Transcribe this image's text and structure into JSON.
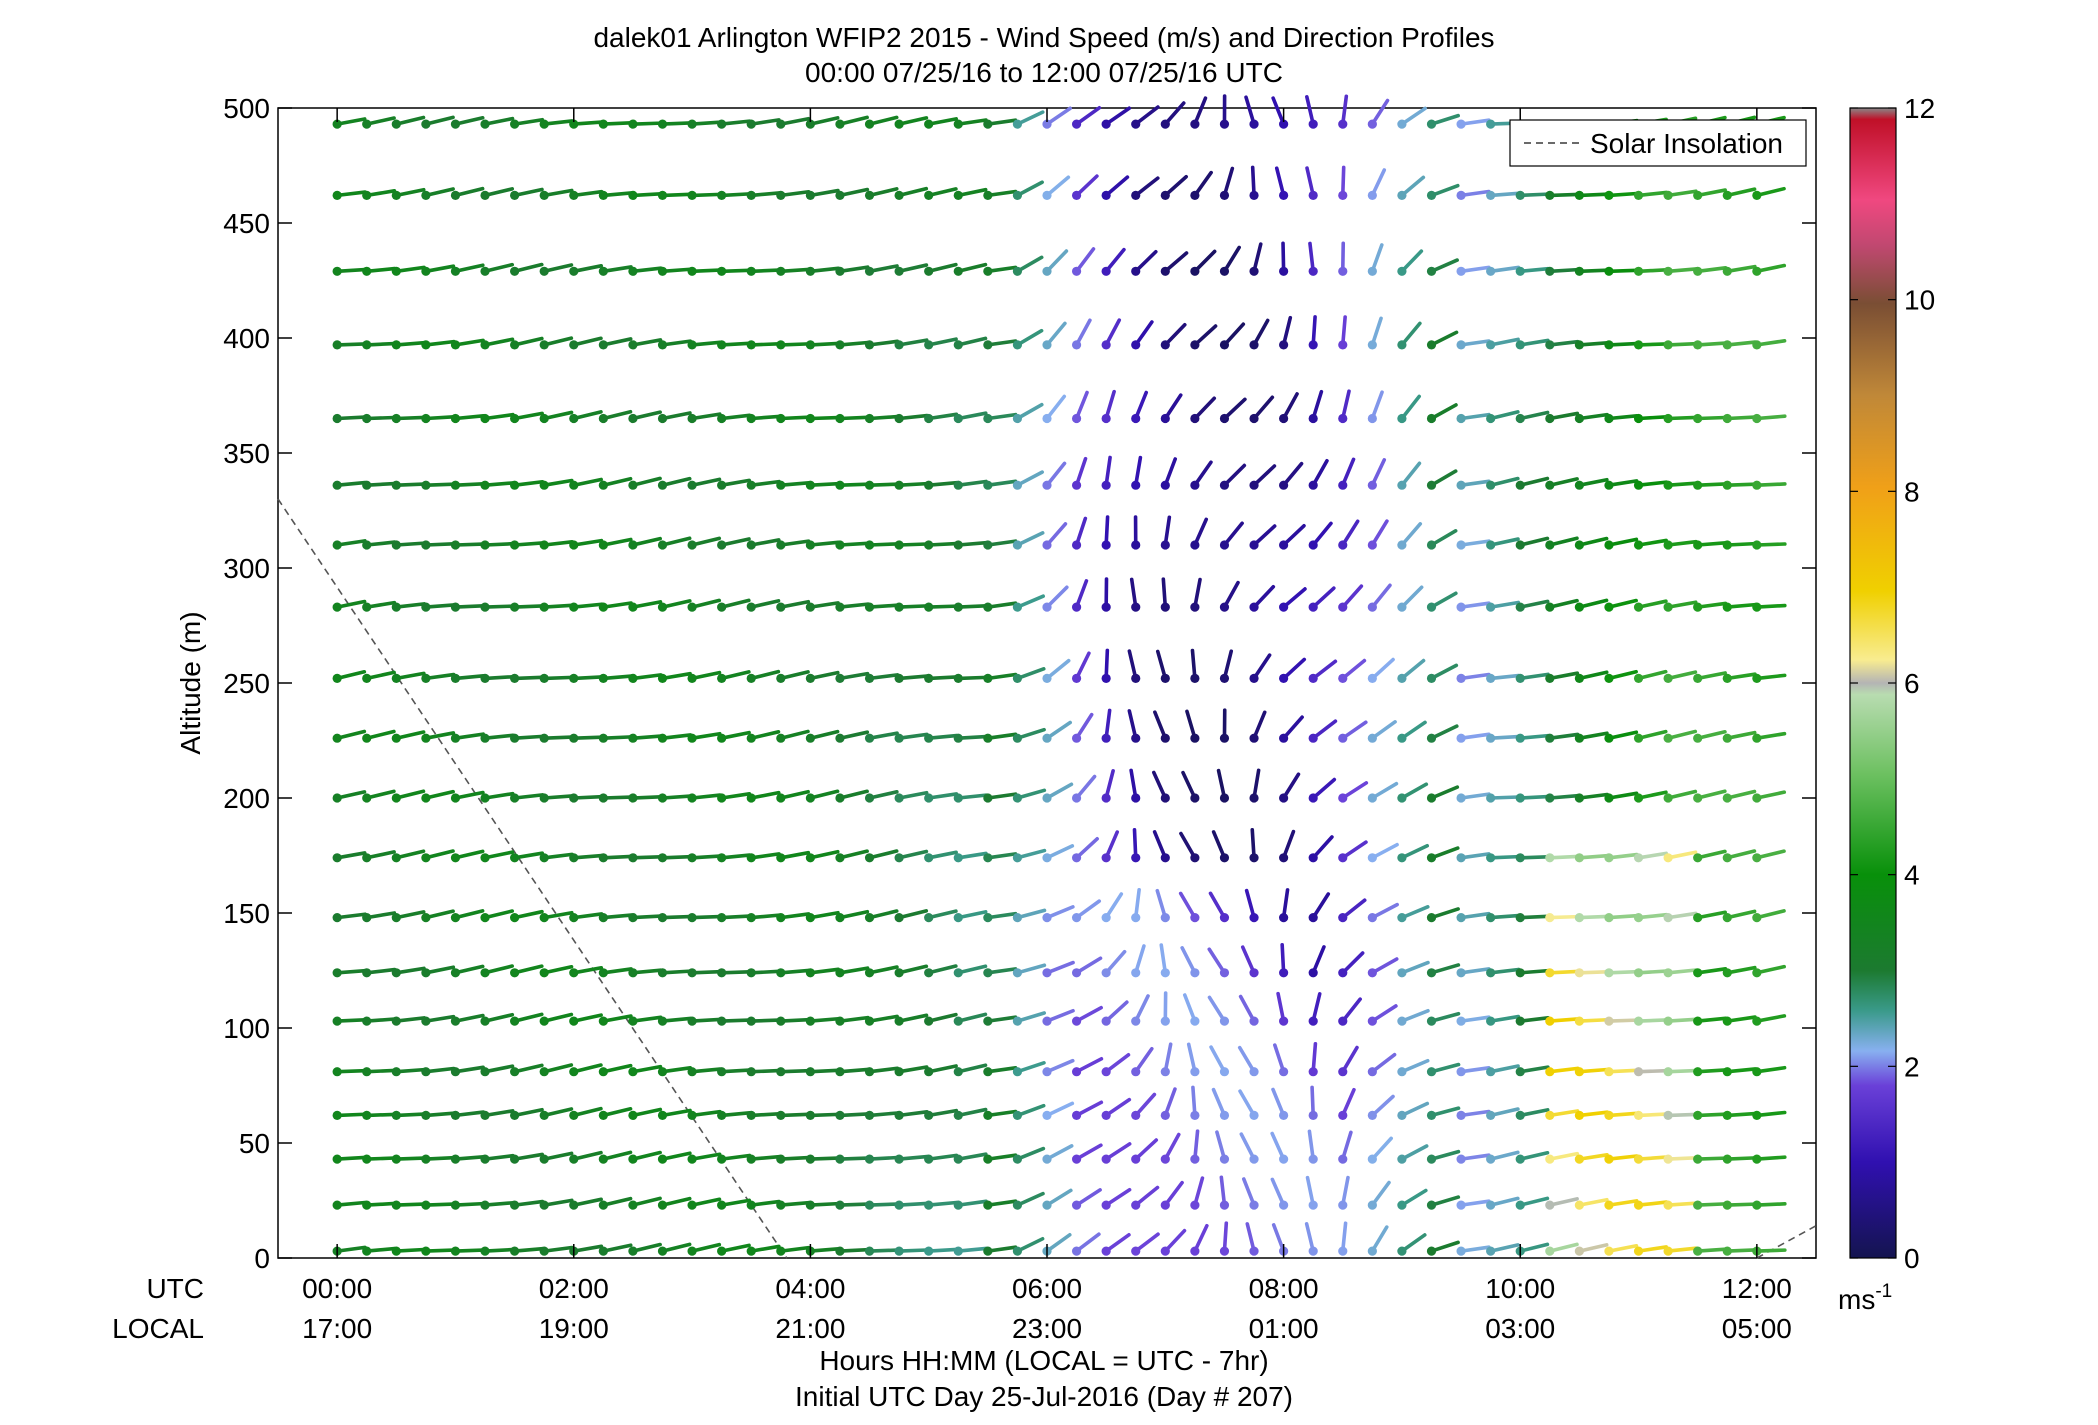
{
  "chart_data": {
    "type": "wind-barb-profile",
    "title": "dalek01 Arlington WFIP2 2015 - Wind Speed (m/s) and Direction Profiles",
    "subtitle": "00:00 07/25/16 to 12:00 07/25/16  UTC",
    "ylabel": "Altitude (m)",
    "xlabel": "Hours HH:MM  (LOCAL = UTC - 7hr)",
    "xlabel2": "Initial UTC Day 25-Jul-2016 (Day # 207)",
    "row_label_utc": "UTC",
    "row_label_local": "LOCAL",
    "ylim": [
      0,
      500
    ],
    "yticks": [
      "0",
      "50",
      "100",
      "150",
      "200",
      "250",
      "300",
      "350",
      "400",
      "450",
      "500"
    ],
    "xlim_hours": [
      -0.5,
      12.5
    ],
    "xticks_utc": [
      "00:00",
      "02:00",
      "04:00",
      "06:00",
      "08:00",
      "10:00",
      "12:00"
    ],
    "xticks_local": [
      "17:00",
      "19:00",
      "21:00",
      "23:00",
      "01:00",
      "03:00",
      "05:00"
    ],
    "legend": {
      "label": "Solar Insolation",
      "placement": "top-right"
    },
    "colorbar": {
      "unit": "ms",
      "unit_exp": "-1",
      "range": [
        0,
        12
      ],
      "ticks": [
        "0",
        "2",
        "4",
        "6",
        "8",
        "10",
        "12"
      ]
    },
    "altitudes": [
      3,
      23,
      43,
      62,
      81,
      103,
      124,
      148,
      174,
      200,
      226,
      252,
      283,
      310,
      336,
      365,
      397,
      429,
      462,
      493
    ],
    "time_step_hours": 0.25,
    "time_count": 49,
    "insolation_line": {
      "start": [
        -0.5,
        330
      ],
      "end": [
        3.8,
        0
      ],
      "restart_x": 12.0
    }
  }
}
